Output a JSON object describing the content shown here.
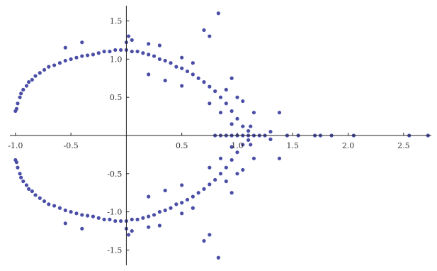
{
  "chart_data": {
    "type": "scatter",
    "title": "",
    "xlabel": "",
    "ylabel": "",
    "xlim": [
      -1.05,
      2.75
    ],
    "ylim": [
      -1.7,
      1.7
    ],
    "x_ticks": [
      {
        "value": -1.0,
        "label": "-1.0"
      },
      {
        "value": -0.5,
        "label": "-0.5"
      },
      {
        "value": 0.5,
        "label": "0.5"
      },
      {
        "value": 1.0,
        "label": "1.0"
      },
      {
        "value": 1.5,
        "label": "1.5"
      },
      {
        "value": 2.0,
        "label": "2.0"
      },
      {
        "value": 2.5,
        "label": "2.5"
      }
    ],
    "y_ticks": [
      {
        "value": 1.5,
        "label": "1.5"
      },
      {
        "value": 1.0,
        "label": "1.0"
      },
      {
        "value": 0.5,
        "label": "0.5"
      },
      {
        "value": -0.5,
        "label": "-0.5"
      },
      {
        "value": -1.0,
        "label": "-1.0"
      },
      {
        "value": -1.5,
        "label": "-1.5"
      }
    ],
    "grid": false,
    "point_color": "#4a4ea6",
    "axis_color": "#222222",
    "series": [
      {
        "points": [
          [
            -1.0,
            0.32
          ],
          [
            -1.0,
            -0.32
          ],
          [
            -0.99,
            0.35
          ],
          [
            -0.99,
            -0.35
          ],
          [
            -0.98,
            0.42
          ],
          [
            -0.98,
            -0.42
          ],
          [
            -0.96,
            0.5
          ],
          [
            -0.96,
            -0.5
          ],
          [
            -0.95,
            0.55
          ],
          [
            -0.95,
            -0.55
          ],
          [
            -0.93,
            0.6
          ],
          [
            -0.93,
            -0.6
          ],
          [
            -0.9,
            0.65
          ],
          [
            -0.9,
            -0.65
          ],
          [
            -0.88,
            0.7
          ],
          [
            -0.88,
            -0.7
          ],
          [
            -0.85,
            0.73
          ],
          [
            -0.85,
            -0.73
          ],
          [
            -0.82,
            0.78
          ],
          [
            -0.82,
            -0.78
          ],
          [
            -0.78,
            0.82
          ],
          [
            -0.78,
            -0.82
          ],
          [
            -0.74,
            0.86
          ],
          [
            -0.74,
            -0.86
          ],
          [
            -0.7,
            0.9
          ],
          [
            -0.7,
            -0.9
          ],
          [
            -0.65,
            0.92
          ],
          [
            -0.65,
            -0.92
          ],
          [
            -0.6,
            0.95
          ],
          [
            -0.6,
            -0.95
          ],
          [
            -0.55,
            0.98
          ],
          [
            -0.55,
            -0.98
          ],
          [
            -0.5,
            1.0
          ],
          [
            -0.5,
            -1.0
          ],
          [
            -0.45,
            1.02
          ],
          [
            -0.45,
            -1.02
          ],
          [
            -0.4,
            1.04
          ],
          [
            -0.4,
            -1.04
          ],
          [
            -0.35,
            1.05
          ],
          [
            -0.35,
            -1.05
          ],
          [
            -0.3,
            1.06
          ],
          [
            -0.3,
            -1.06
          ],
          [
            -0.25,
            1.08
          ],
          [
            -0.25,
            -1.08
          ],
          [
            -0.2,
            1.1
          ],
          [
            -0.2,
            -1.1
          ],
          [
            -0.15,
            1.1
          ],
          [
            -0.15,
            -1.1
          ],
          [
            -0.1,
            1.12
          ],
          [
            -0.1,
            -1.12
          ],
          [
            -0.05,
            1.12
          ],
          [
            -0.05,
            -1.12
          ],
          [
            0.0,
            1.12
          ],
          [
            0.0,
            -1.12
          ],
          [
            0.05,
            1.1
          ],
          [
            0.05,
            -1.1
          ],
          [
            0.1,
            1.1
          ],
          [
            0.1,
            -1.1
          ],
          [
            0.15,
            1.08
          ],
          [
            0.15,
            -1.08
          ],
          [
            0.2,
            1.06
          ],
          [
            0.2,
            -1.06
          ],
          [
            0.25,
            1.04
          ],
          [
            0.25,
            -1.04
          ],
          [
            0.3,
            1.0
          ],
          [
            0.3,
            -1.0
          ],
          [
            0.35,
            0.98
          ],
          [
            0.35,
            -0.98
          ],
          [
            0.4,
            0.95
          ],
          [
            0.4,
            -0.95
          ],
          [
            0.45,
            0.9
          ],
          [
            0.45,
            -0.9
          ],
          [
            0.5,
            0.88
          ],
          [
            0.5,
            -0.88
          ],
          [
            0.55,
            0.84
          ],
          [
            0.55,
            -0.84
          ],
          [
            0.6,
            0.8
          ],
          [
            0.6,
            -0.8
          ],
          [
            0.65,
            0.75
          ],
          [
            0.65,
            -0.75
          ],
          [
            0.7,
            0.7
          ],
          [
            0.7,
            -0.7
          ],
          [
            0.75,
            0.64
          ],
          [
            0.75,
            -0.64
          ],
          [
            0.8,
            0.58
          ],
          [
            0.8,
            -0.58
          ],
          [
            0.85,
            0.5
          ],
          [
            0.85,
            -0.5
          ],
          [
            0.9,
            0.42
          ],
          [
            0.9,
            -0.42
          ],
          [
            0.95,
            0.32
          ],
          [
            0.95,
            -0.32
          ],
          [
            1.0,
            0.22
          ],
          [
            1.0,
            -0.22
          ],
          [
            1.05,
            0.12
          ],
          [
            1.05,
            -0.12
          ],
          [
            1.1,
            0.06
          ],
          [
            1.1,
            -0.06
          ],
          [
            1.12,
            0.12
          ],
          [
            1.12,
            -0.12
          ],
          [
            1.15,
            0.3
          ],
          [
            1.15,
            -0.3
          ],
          [
            1.05,
            0.45
          ],
          [
            1.05,
            -0.45
          ],
          [
            0.0,
            1.22
          ],
          [
            0.0,
            -1.22
          ],
          [
            0.02,
            1.3
          ],
          [
            0.02,
            -1.3
          ],
          [
            0.05,
            1.25
          ],
          [
            0.05,
            -1.25
          ],
          [
            0.3,
            1.18
          ],
          [
            0.3,
            -1.18
          ],
          [
            0.5,
            1.02
          ],
          [
            0.5,
            -1.02
          ],
          [
            0.7,
            1.38
          ],
          [
            0.7,
            -1.38
          ],
          [
            0.75,
            1.3
          ],
          [
            0.75,
            -1.3
          ],
          [
            0.83,
            1.6
          ],
          [
            0.83,
            -1.6
          ],
          [
            1.38,
            0.3
          ],
          [
            1.38,
            -0.3
          ],
          [
            1.3,
            0.05
          ],
          [
            1.3,
            -0.05
          ],
          [
            1.45,
            0.0
          ],
          [
            1.55,
            0.0
          ],
          [
            1.7,
            0.0
          ],
          [
            1.75,
            0.0
          ],
          [
            1.85,
            0.0
          ],
          [
            2.05,
            0.0
          ],
          [
            2.55,
            0.0
          ],
          [
            2.72,
            0.0
          ],
          [
            1.2,
            0.0
          ],
          [
            1.25,
            0.0
          ],
          [
            0.8,
            0.0
          ],
          [
            0.85,
            0.0
          ],
          [
            0.9,
            0.0
          ],
          [
            0.95,
            0.0
          ],
          [
            1.0,
            0.0
          ],
          [
            1.05,
            0.0
          ],
          [
            1.1,
            0.0
          ],
          [
            1.15,
            0.0
          ],
          [
            -0.4,
            1.22
          ],
          [
            -0.4,
            -1.22
          ],
          [
            -0.55,
            1.15
          ],
          [
            -0.55,
            -1.15
          ],
          [
            0.2,
            1.2
          ],
          [
            0.2,
            -1.2
          ],
          [
            0.6,
            0.95
          ],
          [
            0.6,
            -0.95
          ],
          [
            0.9,
            0.6
          ],
          [
            0.9,
            -0.6
          ],
          [
            1.0,
            0.5
          ],
          [
            1.0,
            -0.5
          ],
          [
            0.95,
            0.75
          ],
          [
            0.95,
            -0.75
          ],
          [
            0.2,
            0.8
          ],
          [
            0.2,
            -0.8
          ],
          [
            0.35,
            0.72
          ],
          [
            0.35,
            -0.72
          ],
          [
            0.5,
            0.65
          ],
          [
            0.5,
            -0.65
          ],
          [
            0.75,
            0.42
          ],
          [
            0.75,
            -0.42
          ],
          [
            0.85,
            0.3
          ],
          [
            0.85,
            -0.3
          ],
          [
            0.95,
            0.15
          ],
          [
            0.95,
            -0.15
          ]
        ]
      }
    ]
  }
}
